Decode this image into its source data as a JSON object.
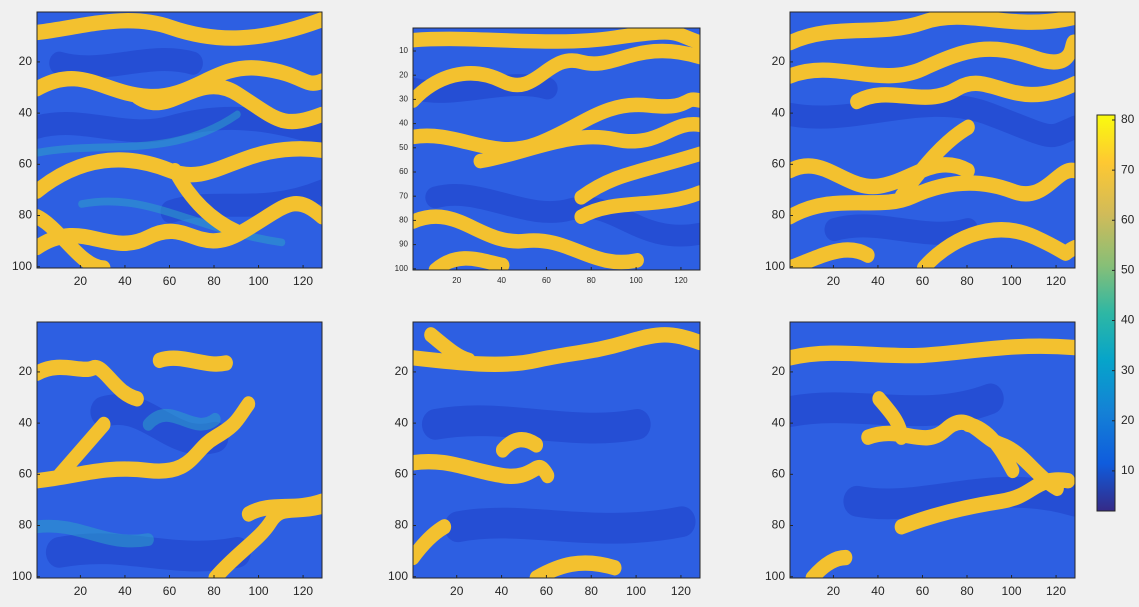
{
  "chart_data": [
    {
      "type": "heatmap",
      "xlim": [
        0.5,
        128.5
      ],
      "ylim": [
        0.5,
        100.5
      ],
      "y_reversed": true,
      "xticks": [
        20,
        40,
        60,
        80,
        100,
        120
      ],
      "yticks": [
        20,
        40,
        60,
        80,
        100
      ]
    },
    {
      "type": "heatmap",
      "xlim": [
        0.5,
        128.5
      ],
      "ylim": [
        0.5,
        100.5
      ],
      "y_reversed": true,
      "xticks": [
        20,
        40,
        60,
        80,
        100,
        120
      ],
      "yticks": [
        10,
        20,
        30,
        40,
        50,
        60,
        70,
        80,
        90,
        100
      ]
    },
    {
      "type": "heatmap",
      "xlim": [
        0.5,
        128.5
      ],
      "ylim": [
        0.5,
        100.5
      ],
      "y_reversed": true,
      "xticks": [
        20,
        40,
        60,
        80,
        100,
        120
      ],
      "yticks": [
        20,
        40,
        60,
        80,
        100
      ]
    },
    {
      "type": "heatmap",
      "xlim": [
        0.5,
        128.5
      ],
      "ylim": [
        0.5,
        100.5
      ],
      "y_reversed": true,
      "xticks": [
        20,
        40,
        60,
        80,
        100,
        120
      ],
      "yticks": [
        20,
        40,
        60,
        80,
        100
      ]
    },
    {
      "type": "heatmap",
      "xlim": [
        0.5,
        128.5
      ],
      "ylim": [
        0.5,
        100.5
      ],
      "y_reversed": true,
      "xticks": [
        20,
        40,
        60,
        80,
        100,
        120
      ],
      "yticks": [
        20,
        40,
        60,
        80,
        100
      ]
    },
    {
      "type": "heatmap",
      "xlim": [
        0.5,
        128.5
      ],
      "ylim": [
        0.5,
        100.5
      ],
      "y_reversed": true,
      "xticks": [
        20,
        40,
        60,
        80,
        100,
        120
      ],
      "yticks": [
        20,
        40,
        60,
        80,
        100
      ]
    },
    {
      "type": "colorbar",
      "colormap": "parula",
      "clim": [
        2,
        81
      ],
      "ticks": [
        10,
        20,
        30,
        40,
        50,
        60,
        70,
        80
      ]
    }
  ]
}
